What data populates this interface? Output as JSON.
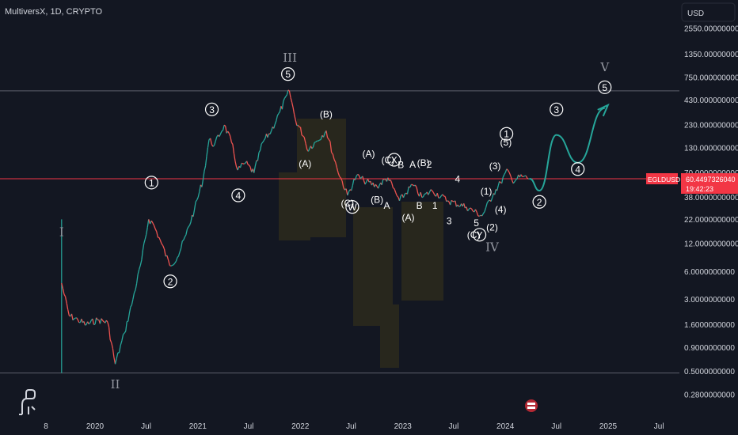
{
  "header": {
    "symbol_info": "MultiversX, 1D, CRYPTO",
    "currency_button": "USD"
  },
  "price_badge": {
    "ticker": "EGLDUSD",
    "price": "60.4497326040",
    "countdown": "19:42:23"
  },
  "chart_data": {
    "type": "line",
    "scale": "log",
    "title": "MultiversX, 1D, CRYPTO",
    "currency": "USD",
    "y_ticks": [
      "2550.0000000000",
      "1350.0000000000",
      "750.0000000000",
      "430.0000000000",
      "230.0000000000",
      "130.0000000000",
      "70.0000000000",
      "38.0000000000",
      "22.0000000000",
      "12.0000000000",
      "6.0000000000",
      "3.0000000000",
      "1.6000000000",
      "0.9000000000",
      "0.5000000000",
      "0.2800000000"
    ],
    "x_ticks": [
      "8",
      "2020",
      "Jul",
      "2021",
      "Jul",
      "2022",
      "Jul",
      "2023",
      "Jul",
      "2024",
      "Jul",
      "2025",
      "Jul"
    ],
    "ylim": [
      0.22,
      3400
    ],
    "series": [
      {
        "values": [
          [
            "2019-09-04",
            4.5
          ],
          [
            "2019-10-01",
            2.0
          ],
          [
            "2019-11-01",
            1.8
          ],
          [
            "2019-12-01",
            1.6
          ],
          [
            "2020-01-10",
            1.8
          ],
          [
            "2020-02-15",
            1.7
          ],
          [
            "2020-03-13",
            0.6
          ],
          [
            "2020-04-15",
            1.3
          ],
          [
            "2020-05-15",
            3.0
          ],
          [
            "2020-06-15",
            8.0
          ],
          [
            "2020-07-10",
            22.0
          ],
          [
            "2020-07-25",
            20.0
          ],
          [
            "2020-08-25",
            12.0
          ],
          [
            "2020-09-23",
            7.0
          ],
          [
            "2020-10-20",
            8.5
          ],
          [
            "2020-11-20",
            15.0
          ],
          [
            "2020-12-20",
            28.0
          ],
          [
            "2021-01-20",
            60.0
          ],
          [
            "2021-02-10",
            160.0
          ],
          [
            "2021-03-01",
            140.0
          ],
          [
            "2021-04-05",
            230.0
          ],
          [
            "2021-05-01",
            150.0
          ],
          [
            "2021-05-23",
            75.0
          ],
          [
            "2021-06-20",
            90.0
          ],
          [
            "2021-07-20",
            70.0
          ],
          [
            "2021-08-20",
            150.0
          ],
          [
            "2021-09-20",
            200.0
          ],
          [
            "2021-10-20",
            320.0
          ],
          [
            "2021-11-23",
            540.0
          ],
          [
            "2021-12-15",
            260.0
          ],
          [
            "2022-01-15",
            170.0
          ],
          [
            "2022-01-25",
            125.0
          ],
          [
            "2022-03-01",
            155.0
          ],
          [
            "2022-04-03",
            200.0
          ],
          [
            "2022-05-11",
            80.0
          ],
          [
            "2022-06-18",
            40.0
          ],
          [
            "2022-07-20",
            65.0
          ],
          [
            "2022-08-15",
            58.0
          ],
          [
            "2022-10-01",
            50.0
          ],
          [
            "2022-11-09",
            62.0
          ],
          [
            "2022-12-20",
            35.0
          ],
          [
            "2023-02-05",
            52.0
          ],
          [
            "2023-03-10",
            38.0
          ],
          [
            "2023-04-15",
            45.0
          ],
          [
            "2023-06-10",
            35.0
          ],
          [
            "2023-08-15",
            30.0
          ],
          [
            "2023-10-10",
            24.0
          ],
          [
            "2023-11-20",
            42.0
          ],
          [
            "2023-12-15",
            55.0
          ],
          [
            "2024-01-10",
            75.0
          ],
          [
            "2024-01-25",
            58.0
          ],
          [
            "2024-03-01",
            64.0
          ],
          [
            "2024-03-28",
            60.45
          ]
        ]
      }
    ],
    "projection": [
      [
        "2024-03-28",
        60.45
      ],
      [
        "2024-05-01",
        45.0
      ],
      [
        "2024-07-01",
        180.0
      ],
      [
        "2024-09-15",
        90.0
      ],
      [
        "2024-12-20",
        350.0
      ]
    ],
    "current_price_line": 60.45,
    "upper_line": 540.0,
    "lower_line": 0.48,
    "wave_labels": [
      {
        "text": "I",
        "date": "2019-09-04",
        "price": 16.0,
        "kind": "roman"
      },
      {
        "text": "II",
        "date": "2020-03-13",
        "price": 0.36,
        "kind": "roman"
      },
      {
        "text": "①",
        "date": "2020-07-20",
        "price": 55.0,
        "kind": "circle"
      },
      {
        "text": "②",
        "date": "2020-09-25",
        "price": 4.7,
        "kind": "circle"
      },
      {
        "text": "③",
        "date": "2021-02-20",
        "price": 340.0,
        "kind": "circle"
      },
      {
        "text": "④",
        "date": "2021-05-25",
        "price": 40.0,
        "kind": "circle"
      },
      {
        "text": "⑤",
        "date": "2021-11-18",
        "price": 820.0,
        "kind": "circle"
      },
      {
        "text": "III",
        "date": "2021-11-25",
        "price": 1230.0,
        "kind": "roman"
      },
      {
        "text": "(B)",
        "date": "2022-04-03",
        "price": 300.0,
        "kind": "plain"
      },
      {
        "text": "(A)",
        "date": "2022-01-18",
        "price": 88.0,
        "kind": "plain"
      },
      {
        "text": "(C)",
        "date": "2022-06-18",
        "price": 33.0,
        "kind": "plain"
      },
      {
        "text": "ⓦ",
        "date": "2022-07-05",
        "price": 30.0,
        "kind": "circle"
      },
      {
        "text": "(A)",
        "date": "2022-09-01",
        "price": 112.0,
        "kind": "plain"
      },
      {
        "text": "(C)",
        "date": "2022-11-09",
        "price": 96.0,
        "kind": "plain"
      },
      {
        "text": "ⓧ",
        "date": "2022-12-01",
        "price": 97.0,
        "kind": "circle"
      },
      {
        "text": "(B)",
        "date": "2022-10-01",
        "price": 36.0,
        "kind": "plain"
      },
      {
        "text": "B",
        "date": "2022-12-25",
        "price": 85.0,
        "kind": "plain"
      },
      {
        "text": "A",
        "date": "2022-11-05",
        "price": 31.0,
        "kind": "plain"
      },
      {
        "text": "A",
        "date": "2023-02-05",
        "price": 86.0,
        "kind": "plain"
      },
      {
        "text": "(B)",
        "date": "2023-03-15",
        "price": 90.0,
        "kind": "plain"
      },
      {
        "text": "2",
        "date": "2023-04-05",
        "price": 86.0,
        "kind": "plain"
      },
      {
        "text": "(A)",
        "date": "2023-01-20",
        "price": 23.0,
        "kind": "plain"
      },
      {
        "text": "B",
        "date": "2023-03-01",
        "price": 31.0,
        "kind": "plain"
      },
      {
        "text": "1",
        "date": "2023-04-25",
        "price": 31.0,
        "kind": "plain"
      },
      {
        "text": "4",
        "date": "2023-07-15",
        "price": 60.0,
        "kind": "plain"
      },
      {
        "text": "3",
        "date": "2023-06-15",
        "price": 21.0,
        "kind": "plain"
      },
      {
        "text": "5",
        "date": "2023-09-20",
        "price": 20.0,
        "kind": "plain"
      },
      {
        "text": "(C)",
        "date": "2023-09-10",
        "price": 15.0,
        "kind": "plain"
      },
      {
        "text": "ⓨ",
        "date": "2023-10-01",
        "price": 15.0,
        "kind": "circle"
      },
      {
        "text": "(1)",
        "date": "2023-10-25",
        "price": 44.0,
        "kind": "plain"
      },
      {
        "text": "(2)",
        "date": "2023-11-15",
        "price": 18.0,
        "kind": "plain"
      },
      {
        "text": "IV",
        "date": "2023-11-15",
        "price": 11.0,
        "kind": "roman"
      },
      {
        "text": "(3)",
        "date": "2023-11-25",
        "price": 83.0,
        "kind": "plain"
      },
      {
        "text": "(4)",
        "date": "2023-12-15",
        "price": 28.0,
        "kind": "plain"
      },
      {
        "text": "(5)",
        "date": "2024-01-03",
        "price": 150.0,
        "kind": "plain"
      },
      {
        "text": "①",
        "date": "2024-01-05",
        "price": 185.0,
        "kind": "circle"
      },
      {
        "text": "②",
        "date": "2024-05-01",
        "price": 34.0,
        "kind": "circle"
      },
      {
        "text": "③",
        "date": "2024-07-01",
        "price": 340.0,
        "kind": "circle"
      },
      {
        "text": "④",
        "date": "2024-09-15",
        "price": 77.0,
        "kind": "circle"
      },
      {
        "text": "⑤",
        "date": "2024-12-20",
        "price": 590.0,
        "kind": "circle"
      },
      {
        "text": "V",
        "date": "2024-12-20",
        "price": 970.0,
        "kind": "roman"
      }
    ],
    "colors": {
      "background": "#131722",
      "up": "#26a69a",
      "down": "#ef5350",
      "projection": "#26a69a",
      "price_line": "#f23645",
      "level_line": "#5d606b",
      "text": "#d1d4dc",
      "label": "#ffffff",
      "grid": "#1e222d"
    },
    "icons": {
      "logo": "dinosaur-icon",
      "event": "flag-event-icon"
    },
    "grid": false
  }
}
